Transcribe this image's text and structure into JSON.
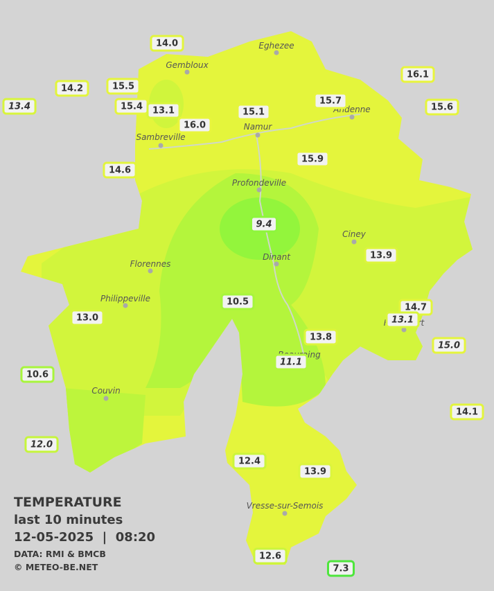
{
  "title": "TEMPERATURE",
  "subtitle": "last 10 minutes",
  "datetime": "12-05-2025  |  08:20",
  "source": "DATA: RMI & BMCB",
  "copyright": "© METEO-BE.NET",
  "cities": [
    "Eghezee",
    "Gembloux",
    "Andenne",
    "Namur",
    "Sambreville",
    "Profondeville",
    "Ciney",
    "Florennes",
    "Dinant",
    "Philippeville",
    "Rochefort",
    "Beauraing",
    "Couvin",
    "Vresse-sur-Semois"
  ],
  "stations": [
    {
      "text": "14.0",
      "color": "#e2f53c",
      "italic": false
    },
    {
      "text": "16.1",
      "color": "#e8f53c",
      "italic": false
    },
    {
      "text": "14.2",
      "color": "#e2f53c",
      "italic": false
    },
    {
      "text": "15.5",
      "color": "#e5f53c",
      "italic": false
    },
    {
      "text": "13.4",
      "color": "#d8f53c",
      "italic": true
    },
    {
      "text": "15.4",
      "color": "#e5f53c",
      "italic": false
    },
    {
      "text": "13.1",
      "color": "#d8f53c",
      "italic": false
    },
    {
      "text": "15.1",
      "color": "#e5f53c",
      "italic": false
    },
    {
      "text": "15.7",
      "color": "#e5f53c",
      "italic": false
    },
    {
      "text": "15.6",
      "color": "#e5f53c",
      "italic": false
    },
    {
      "text": "16.0",
      "color": "#e8f53c",
      "italic": false
    },
    {
      "text": "14.6",
      "color": "#e2f53c",
      "italic": false
    },
    {
      "text": "15.9",
      "color": "#e5f53c",
      "italic": false
    },
    {
      "text": "9.4",
      "color": "#8ef53c",
      "italic": true
    },
    {
      "text": "13.9",
      "color": "#dcf53c",
      "italic": false
    },
    {
      "text": "10.5",
      "color": "#a6f53c",
      "italic": false
    },
    {
      "text": "14.7",
      "color": "#e2f53c",
      "italic": false
    },
    {
      "text": "13.1",
      "color": "#d8f53c",
      "italic": true
    },
    {
      "text": "13.0",
      "color": "#d6f53c",
      "italic": false
    },
    {
      "text": "13.8",
      "color": "#dcf53c",
      "italic": false
    },
    {
      "text": "15.0",
      "color": "#e5f53c",
      "italic": true
    },
    {
      "text": "11.1",
      "color": "#b2f53c",
      "italic": true
    },
    {
      "text": "10.6",
      "color": "#a8f53c",
      "italic": false
    },
    {
      "text": "14.1",
      "color": "#e2f53c",
      "italic": false
    },
    {
      "text": "12.0",
      "color": "#c6f53c",
      "italic": true
    },
    {
      "text": "12.4",
      "color": "#ccf53c",
      "italic": false
    },
    {
      "text": "13.9",
      "color": "#dcf53c",
      "italic": false
    },
    {
      "text": "12.6",
      "color": "#ccf53c",
      "italic": false
    },
    {
      "text": "7.3",
      "color": "#4ee63c",
      "italic": false
    }
  ]
}
